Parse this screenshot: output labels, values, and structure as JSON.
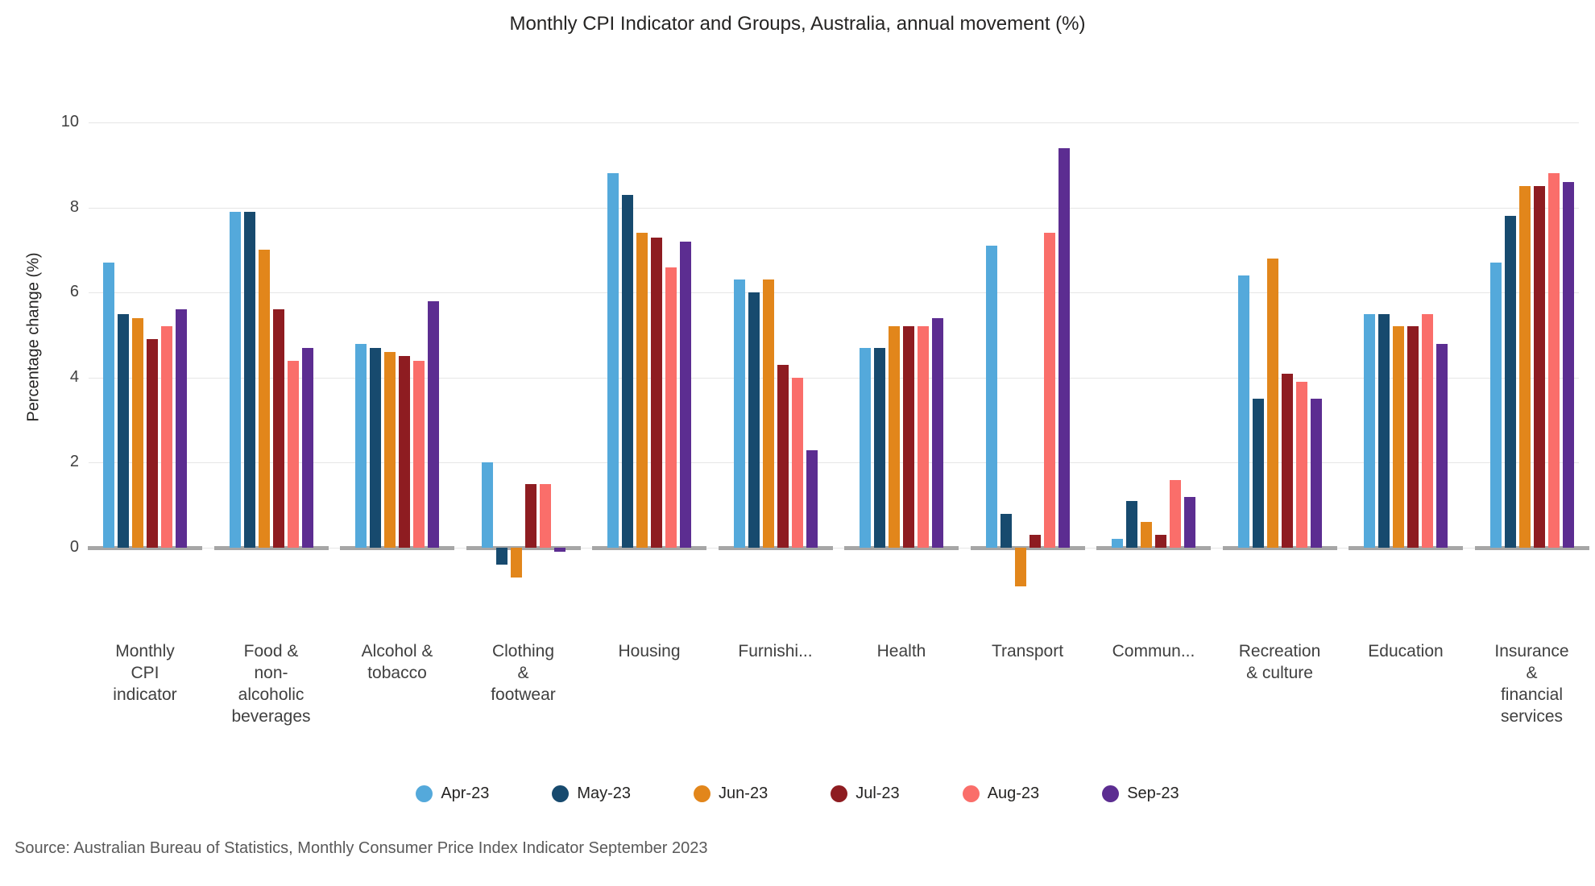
{
  "chart_data": {
    "type": "bar",
    "title": "Monthly CPI Indicator and Groups, Australia, annual movement (%)",
    "ylabel": "Percentage change (%)",
    "xlabel": "",
    "ylim": [
      -1.2,
      10
    ],
    "yticks": [
      0,
      2,
      4,
      6,
      8,
      10
    ],
    "grid": true,
    "legend_position": "bottom",
    "categories": [
      "Monthly CPI indicator",
      "Food & non-alcoholic beverages",
      "Alcohol & tobacco",
      "Clothing & footwear",
      "Housing",
      "Furnishi...",
      "Health",
      "Transport",
      "Commun...",
      "Recreation & culture",
      "Education",
      "Insurance & financial services"
    ],
    "category_label_lines": [
      [
        "Monthly",
        "CPI",
        "indicator"
      ],
      [
        "Food &",
        "non-",
        "alcoholic",
        "beverages"
      ],
      [
        "Alcohol &",
        "tobacco"
      ],
      [
        "Clothing",
        "&",
        "footwear"
      ],
      [
        "Housing"
      ],
      [
        "Furnishi..."
      ],
      [
        "Health"
      ],
      [
        "Transport"
      ],
      [
        "Commun..."
      ],
      [
        "Recreation",
        "& culture"
      ],
      [
        "Education"
      ],
      [
        "Insurance",
        "&",
        "financial",
        "services"
      ]
    ],
    "series": [
      {
        "name": "Apr-23",
        "color": "#54A9DB",
        "values": [
          6.7,
          7.9,
          4.8,
          2.0,
          8.8,
          6.3,
          4.7,
          7.1,
          0.2,
          6.4,
          5.5,
          6.7
        ]
      },
      {
        "name": "May-23",
        "color": "#174A6E",
        "values": [
          5.5,
          7.9,
          4.7,
          -0.4,
          8.3,
          6.0,
          4.7,
          0.8,
          1.1,
          3.5,
          5.5,
          7.8
        ]
      },
      {
        "name": "Jun-23",
        "color": "#E2861B",
        "values": [
          5.4,
          7.0,
          4.6,
          -0.7,
          7.4,
          6.3,
          5.2,
          -0.9,
          0.6,
          6.8,
          5.2,
          8.5
        ]
      },
      {
        "name": "Jul-23",
        "color": "#8E1C21",
        "values": [
          4.9,
          5.6,
          4.5,
          1.5,
          7.3,
          4.3,
          5.2,
          0.3,
          0.3,
          4.1,
          5.2,
          8.5
        ]
      },
      {
        "name": "Aug-23",
        "color": "#FA6E6A",
        "values": [
          5.2,
          4.4,
          4.4,
          1.5,
          6.6,
          4.0,
          5.2,
          7.4,
          1.6,
          3.9,
          5.5,
          8.8
        ]
      },
      {
        "name": "Sep-23",
        "color": "#5C2D91",
        "values": [
          5.6,
          4.7,
          5.8,
          -0.1,
          7.2,
          2.3,
          5.4,
          9.4,
          1.2,
          3.5,
          4.8,
          8.6
        ]
      }
    ]
  },
  "colors": {
    "grid": "#E6E6E6",
    "baseline": "#A6A6A6"
  },
  "source": "Source: Australian Bureau of Statistics, Monthly Consumer Price Index Indicator September 2023"
}
